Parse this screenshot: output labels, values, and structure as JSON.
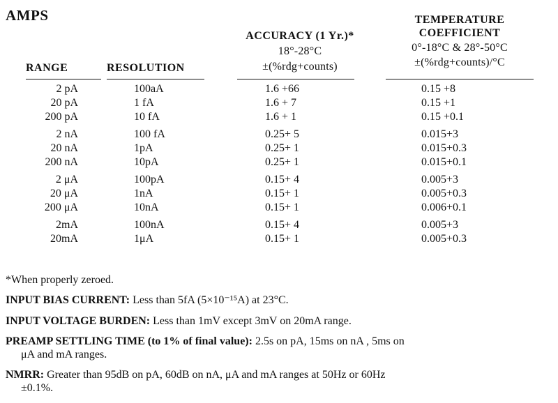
{
  "title": "AMPS",
  "headers": {
    "range": "RANGE",
    "resolution": "RESOLUTION",
    "accuracy_line1": "ACCURACY (1 Yr.)*",
    "accuracy_line2": "18°-28°C",
    "accuracy_line3": "±(%rdg+counts)",
    "temp_line1": "TEMPERATURE",
    "temp_line2": "COEFFICIENT",
    "temp_line3": "0°-18°C & 28°-50°C",
    "temp_line4": "±(%rdg+counts)/°C"
  },
  "rows": [
    {
      "range": "2 pA",
      "resolution": "100aA",
      "accuracy": "1.6  +66",
      "temp": "0.15  +8"
    },
    {
      "range": "20 pA",
      "resolution": "1 fA",
      "accuracy": "1.6  +  7",
      "temp": "0.15  +1"
    },
    {
      "range": "200 pA",
      "resolution": "10 fA",
      "accuracy": "1.6  +  1",
      "temp": "0.15  +0.1"
    },
    {
      "range": "2 nA",
      "resolution": "100 fA",
      "accuracy": "0.25+  5",
      "temp": "0.015+3"
    },
    {
      "range": "20 nA",
      "resolution": "1pA",
      "accuracy": "0.25+  1",
      "temp": "0.015+0.3"
    },
    {
      "range": "200 nA",
      "resolution": "10pA",
      "accuracy": "0.25+  1",
      "temp": "0.015+0.1"
    },
    {
      "range": "2 μA",
      "resolution": "100pA",
      "accuracy": "0.15+  4",
      "temp": "0.005+3"
    },
    {
      "range": "20 μA",
      "resolution": "1nA",
      "accuracy": "0.15+  1",
      "temp": "0.005+0.3"
    },
    {
      "range": "200 μA",
      "resolution": "10nA",
      "accuracy": "0.15+  1",
      "temp": "0.006+0.1"
    },
    {
      "range": "2mA",
      "resolution": "100nA",
      "accuracy": "0.15+  4",
      "temp": "0.005+3"
    },
    {
      "range": "20mA",
      "resolution": "1μA",
      "accuracy": "0.15+  1",
      "temp": "0.005+0.3"
    }
  ],
  "footnote": "*When properly zeroed.",
  "specs": {
    "bias_label": "INPUT BIAS CURRENT:",
    "bias_text": "Less than 5fA (5×10⁻¹⁵A) at 23°C.",
    "burden_label": "INPUT VOLTAGE BURDEN:",
    "burden_text": "Less than 1mV except 3mV on 20mA range.",
    "settling_label": "PREAMP SETTLING TIME (to 1% of final value):",
    "settling_text1": "2.5s on pA,  15ms on nA ,  5ms on",
    "settling_text2": "μA and mA ranges.",
    "nmrr_label": "NMRR:",
    "nmrr_text1": "Greater than 95dB on pA, 60dB on nA, μA and mA ranges at 50Hz or 60Hz",
    "nmrr_text2": "±0.1%."
  }
}
